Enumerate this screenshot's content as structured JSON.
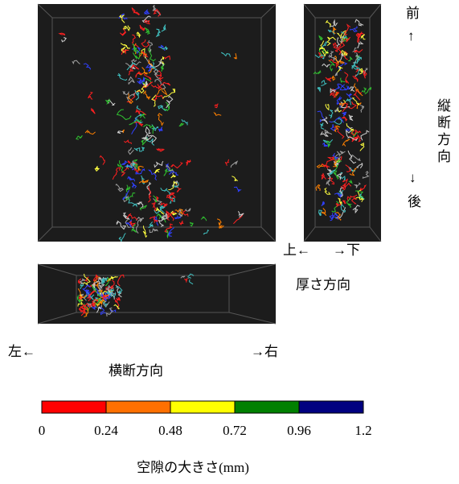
{
  "views": {
    "front": "前",
    "front_arrow": "↑",
    "longitudinal": "縦断方向",
    "back_arrow": "↓",
    "back": "後",
    "top": "上←",
    "bottom": "→下",
    "thickness": "厚さ方向",
    "left": "左←",
    "right": "→右",
    "transverse": "横断方向"
  },
  "colorbar": {
    "label": "空隙の大きさ(mm)",
    "ticks": [
      0,
      0.24,
      0.48,
      0.72,
      0.96,
      1.2
    ],
    "colors": [
      "#ff0000",
      "#ff7000",
      "#ffff00",
      "#008000",
      "#000080"
    ]
  }
}
